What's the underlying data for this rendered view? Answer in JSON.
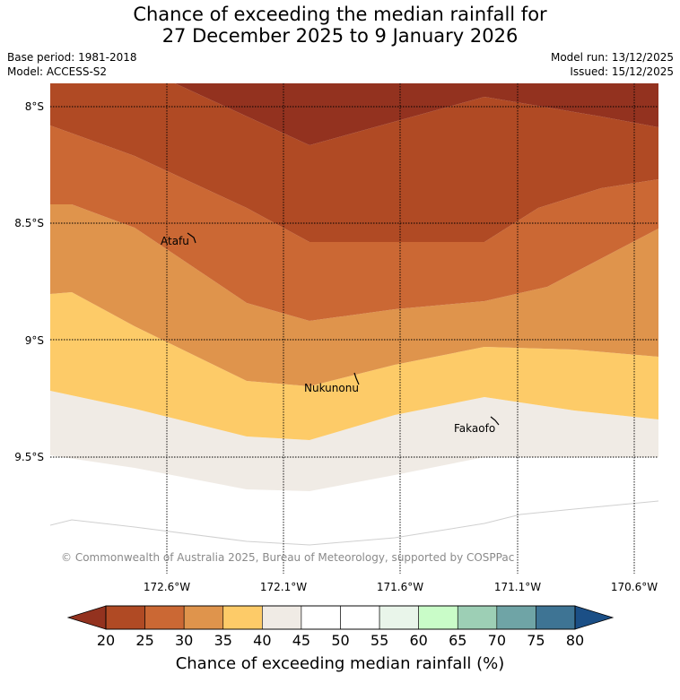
{
  "header": {
    "title_line1": "Chance of exceeding the median rainfall for",
    "title_line2": "27 December 2025 to 9 January 2026",
    "base_period": "Base period: 1981-2018",
    "model": "Model: ACCESS-S2",
    "model_run": "Model run: 13/12/2025",
    "issued": "Issued: 15/12/2025"
  },
  "map": {
    "lat_labels": [
      "8°S",
      "8.5°S",
      "9°S",
      "9.5°S"
    ],
    "lon_labels": [
      "172.6°W",
      "172.1°W",
      "171.6°W",
      "171.1°W",
      "170.6°W"
    ],
    "places": [
      "Atafu",
      "Nukunonu",
      "Fakaofo"
    ],
    "copyright": "© Commonwealth of Australia 2025, Bureau of Meteorology, supported by COSPPac"
  },
  "legend": {
    "ticks": [
      "20",
      "25",
      "30",
      "35",
      "40",
      "45",
      "50",
      "55",
      "60",
      "65",
      "70",
      "75",
      "80"
    ],
    "colors": [
      "#b04a24",
      "#cb6834",
      "#df944c",
      "#fdcb68",
      "#f0ebe5",
      "#ffffff",
      "#ffffff",
      "#e9f5ea",
      "#c9fcc8",
      "#9dcfb5",
      "#6fa4a6",
      "#3e7494"
    ],
    "under_color": "#93321f",
    "over_color": "#1b4f86",
    "label": "Chance of exceeding median rainfall (%)"
  }
}
